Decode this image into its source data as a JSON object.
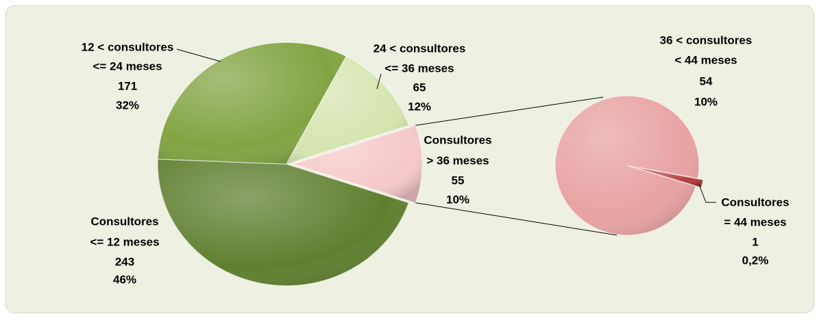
{
  "chart_data": {
    "type": "pie-of-pie",
    "categories": [
      [
        "Consultores",
        "<= 12 meses"
      ],
      [
        "12 < consultores",
        "<= 24 meses"
      ],
      [
        "24 < consultores",
        "<= 36 meses"
      ],
      [
        "Consultores",
        "> 36 meses"
      ]
    ],
    "values": [
      243,
      171,
      65,
      55
    ],
    "percent_labels": [
      "46%",
      "32%",
      "12%",
      "10%"
    ],
    "colors": [
      "#5f7f2f",
      "#83a443",
      "#d6e5b0",
      "#f6c9c9"
    ],
    "secondary": {
      "categories": [
        [
          "36 < consultores",
          "< 44 meses"
        ],
        [
          "Consultores",
          "= 44 meses"
        ]
      ],
      "values": [
        54,
        1
      ],
      "percent_labels": [
        "10%",
        "0,2%"
      ],
      "colors": [
        "#e8a3a3",
        "#b23a3a"
      ]
    }
  }
}
